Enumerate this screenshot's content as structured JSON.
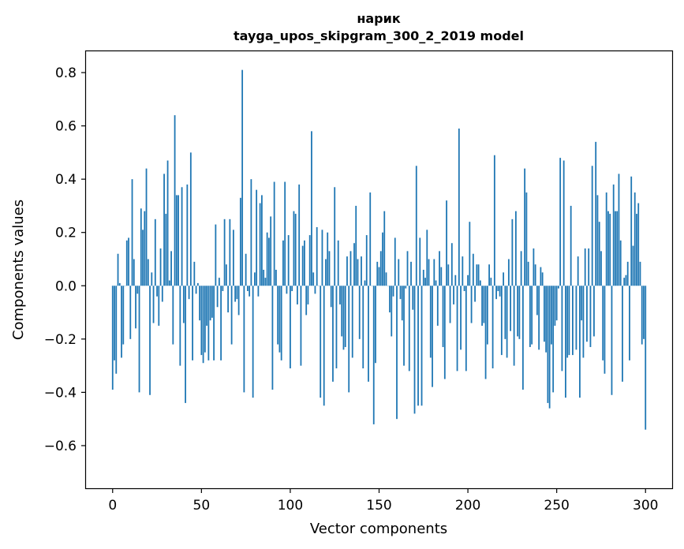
{
  "chart_data": {
    "type": "bar",
    "title": "нарик",
    "subtitle": "tayga_upos_skipgram_300_2_2019 model",
    "xlabel": "Vector components",
    "ylabel": "Components values",
    "xlim": [
      -15,
      315
    ],
    "ylim": [
      -0.76,
      0.88
    ],
    "xticks": [
      0,
      50,
      100,
      150,
      200,
      250,
      300
    ],
    "xtick_labels": [
      "0",
      "50",
      "100",
      "150",
      "200",
      "250",
      "300"
    ],
    "yticks": [
      -0.6,
      -0.4,
      -0.2,
      0.0,
      0.2,
      0.4,
      0.6,
      0.8
    ],
    "ytick_labels": [
      "−0.6",
      "−0.4",
      "−0.2",
      "0.0",
      "0.2",
      "0.4",
      "0.6",
      "0.8"
    ],
    "bar_color": "#1f77b4",
    "grid": false,
    "values": [
      -0.39,
      -0.28,
      -0.33,
      0.12,
      0.01,
      -0.27,
      -0.22,
      0.0,
      0.17,
      0.18,
      -0.2,
      0.4,
      0.1,
      -0.16,
      -0.03,
      -0.4,
      0.29,
      0.21,
      0.28,
      0.44,
      0.1,
      -0.41,
      0.05,
      -0.14,
      0.25,
      -0.04,
      -0.15,
      0.14,
      -0.06,
      0.42,
      0.27,
      0.47,
      0.02,
      0.13,
      -0.22,
      0.64,
      0.34,
      0.34,
      -0.3,
      0.37,
      -0.14,
      -0.44,
      0.38,
      -0.05,
      0.5,
      -0.28,
      0.09,
      -0.03,
      0.01,
      -0.13,
      -0.26,
      -0.29,
      -0.25,
      -0.15,
      -0.28,
      -0.13,
      -0.12,
      -0.28,
      0.23,
      -0.08,
      0.03,
      -0.28,
      -0.02,
      0.25,
      0.08,
      -0.1,
      0.25,
      -0.22,
      0.21,
      -0.06,
      -0.05,
      -0.11,
      0.33,
      0.81,
      -0.4,
      0.12,
      -0.02,
      -0.04,
      0.4,
      -0.42,
      0.05,
      0.36,
      -0.04,
      0.31,
      0.34,
      0.06,
      0.03,
      0.2,
      0.18,
      0.26,
      -0.39,
      0.39,
      0.06,
      -0.22,
      -0.25,
      -0.28,
      0.17,
      0.39,
      -0.03,
      0.19,
      -0.31,
      -0.02,
      0.28,
      0.27,
      -0.07,
      0.38,
      -0.3,
      0.15,
      0.17,
      -0.11,
      -0.07,
      0.19,
      0.58,
      0.05,
      -0.03,
      0.22,
      0.0,
      -0.42,
      0.21,
      -0.45,
      0.1,
      0.2,
      0.13,
      -0.08,
      -0.36,
      0.37,
      -0.31,
      0.17,
      -0.07,
      -0.19,
      -0.24,
      -0.23,
      0.11,
      -0.4,
      0.13,
      -0.27,
      0.16,
      0.3,
      0.1,
      -0.2,
      0.11,
      -0.31,
      0.02,
      0.19,
      -0.36,
      0.35,
      0.0,
      -0.52,
      -0.29,
      0.09,
      0.07,
      0.13,
      0.2,
      0.28,
      0.05,
      0.0,
      -0.1,
      -0.19,
      -0.04,
      0.18,
      -0.5,
      0.1,
      -0.05,
      -0.13,
      -0.3,
      -0.01,
      0.13,
      -0.32,
      0.09,
      -0.09,
      -0.48,
      0.45,
      -0.45,
      0.18,
      -0.45,
      0.06,
      0.03,
      0.21,
      0.1,
      -0.27,
      -0.38,
      0.1,
      0.02,
      -0.15,
      0.13,
      0.07,
      -0.23,
      -0.35,
      0.32,
      0.08,
      -0.14,
      0.16,
      -0.07,
      0.04,
      -0.32,
      0.59,
      -0.24,
      0.11,
      -0.02,
      -0.32,
      0.04,
      0.24,
      -0.14,
      0.12,
      -0.06,
      0.08,
      0.08,
      0.02,
      -0.15,
      -0.14,
      -0.35,
      -0.22,
      0.08,
      0.03,
      -0.31,
      0.49,
      -0.05,
      -0.02,
      -0.04,
      -0.26,
      0.05,
      -0.2,
      -0.27,
      0.1,
      -0.17,
      0.25,
      -0.3,
      0.28,
      -0.19,
      -0.2,
      0.13,
      -0.39,
      0.44,
      0.35,
      0.09,
      -0.23,
      -0.22,
      0.14,
      0.08,
      -0.11,
      -0.24,
      0.07,
      0.05,
      -0.21,
      -0.25,
      -0.44,
      -0.46,
      -0.22,
      -0.4,
      -0.15,
      -0.13,
      -0.01,
      0.48,
      -0.32,
      0.47,
      -0.42,
      -0.27,
      -0.26,
      0.3,
      -0.26,
      0.0,
      -0.24,
      0.11,
      -0.42,
      -0.13,
      -0.27,
      0.14,
      -0.21,
      0.14,
      -0.23,
      0.45,
      -0.19,
      0.54,
      0.34,
      0.24,
      0.13,
      -0.28,
      -0.33,
      0.35,
      0.28,
      0.27,
      -0.41,
      0.38,
      0.28,
      0.28,
      0.42,
      0.17,
      -0.36,
      0.03,
      0.04,
      0.09,
      -0.28,
      0.41,
      0.15,
      0.35,
      0.27,
      0.31,
      0.09,
      -0.22,
      -0.2,
      -0.54
    ]
  }
}
